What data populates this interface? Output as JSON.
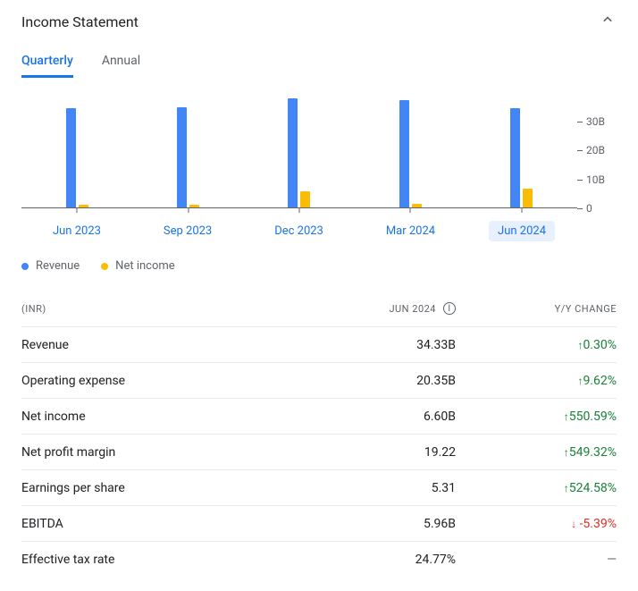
{
  "header": {
    "title": "Income Statement"
  },
  "tabs": [
    {
      "label": "Quarterly",
      "active": true
    },
    {
      "label": "Annual",
      "active": false
    }
  ],
  "chart": {
    "type": "grouped-bar",
    "ymax": 40,
    "yticks": [
      0,
      10,
      20,
      30
    ],
    "ytick_labels": [
      "0",
      "10B",
      "20B",
      "30B"
    ],
    "colors": {
      "revenue": "#4285f4",
      "net_income": "#fbbc04"
    },
    "background": "#ffffff",
    "axis_color": "#5f6368",
    "periods": [
      {
        "label": "Jun 2023",
        "revenue": 34.2,
        "net_income": 1.0,
        "selected": false
      },
      {
        "label": "Sep 2023",
        "revenue": 34.5,
        "net_income": 1.0,
        "selected": false
      },
      {
        "label": "Dec 2023",
        "revenue": 37.5,
        "net_income": 5.5,
        "selected": false
      },
      {
        "label": "Mar 2024",
        "revenue": 37.0,
        "net_income": 1.2,
        "selected": false
      },
      {
        "label": "Jun 2024",
        "revenue": 34.3,
        "net_income": 6.6,
        "selected": true
      }
    ],
    "legend": [
      {
        "label": "Revenue",
        "color": "#4285f4"
      },
      {
        "label": "Net income",
        "color": "#fbbc04"
      }
    ]
  },
  "table": {
    "headers": {
      "label": "(INR)",
      "value": "JUN 2024",
      "change": "Y/Y CHANGE"
    },
    "rows": [
      {
        "label": "Revenue",
        "value": "34.33B",
        "change": "0.30%",
        "dir": "up"
      },
      {
        "label": "Operating expense",
        "value": "20.35B",
        "change": "9.62%",
        "dir": "up"
      },
      {
        "label": "Net income",
        "value": "6.60B",
        "change": "550.59%",
        "dir": "up"
      },
      {
        "label": "Net profit margin",
        "value": "19.22",
        "change": "549.32%",
        "dir": "up"
      },
      {
        "label": "Earnings per share",
        "value": "5.31",
        "change": "524.58%",
        "dir": "up"
      },
      {
        "label": "EBITDA",
        "value": "5.96B",
        "change": "-5.39%",
        "dir": "down"
      },
      {
        "label": "Effective tax rate",
        "value": "24.77%",
        "change": "—",
        "dir": "none"
      }
    ]
  }
}
